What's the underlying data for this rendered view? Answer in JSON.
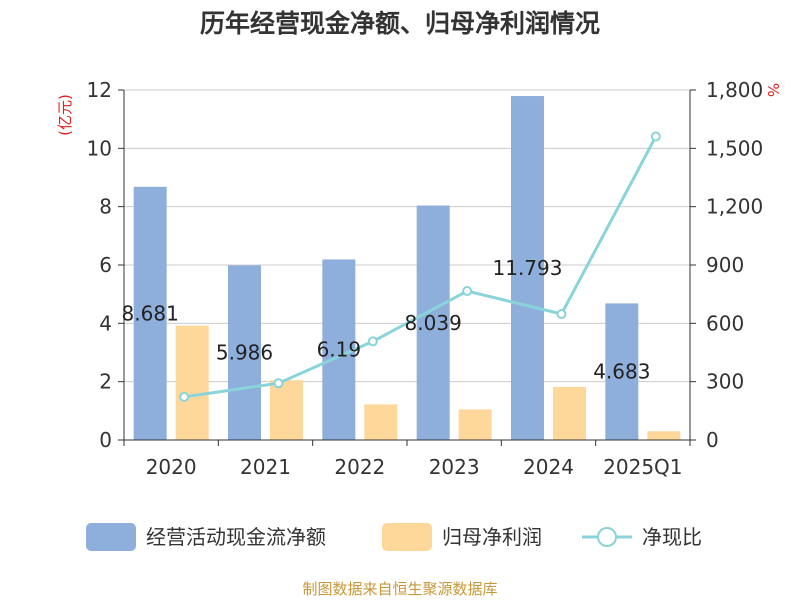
{
  "chart_data": {
    "type": "bar",
    "title": "历年经营现金净额、归母净利润情况",
    "categories": [
      "2020",
      "2021",
      "2022",
      "2023",
      "2024",
      "2025Q1"
    ],
    "left_axis": {
      "unit": "(亿元)",
      "range": [
        0,
        12
      ],
      "ticks": [
        "0",
        "2",
        "4",
        "6",
        "8",
        "10",
        "12"
      ]
    },
    "right_axis": {
      "unit": "%",
      "range": [
        0,
        1800
      ],
      "ticks": [
        "0",
        "300",
        "600",
        "900",
        "1,200",
        "1,500",
        "1,800"
      ]
    },
    "series": [
      {
        "name": "经营活动现金流净额",
        "type": "bar",
        "axis": "left",
        "color": "#8eaedc",
        "values": [
          8.681,
          5.986,
          6.19,
          8.039,
          11.793,
          4.683
        ],
        "labels": [
          "8.681",
          "5.986",
          "6.19",
          "8.039",
          "11.793",
          "4.683"
        ]
      },
      {
        "name": "归母净利润",
        "type": "bar",
        "axis": "left",
        "color": "#fdd89a",
        "values": [
          3.92,
          2.05,
          1.22,
          1.05,
          1.82,
          0.3
        ]
      },
      {
        "name": "净现比",
        "type": "line",
        "axis": "right",
        "color": "#8ad4d9",
        "values": [
          222,
          292,
          507,
          766,
          648,
          1561
        ]
      }
    ],
    "grid": true,
    "legend_position": "bottom"
  },
  "footer": {
    "source": "制图数据来自恒生聚源数据库"
  }
}
